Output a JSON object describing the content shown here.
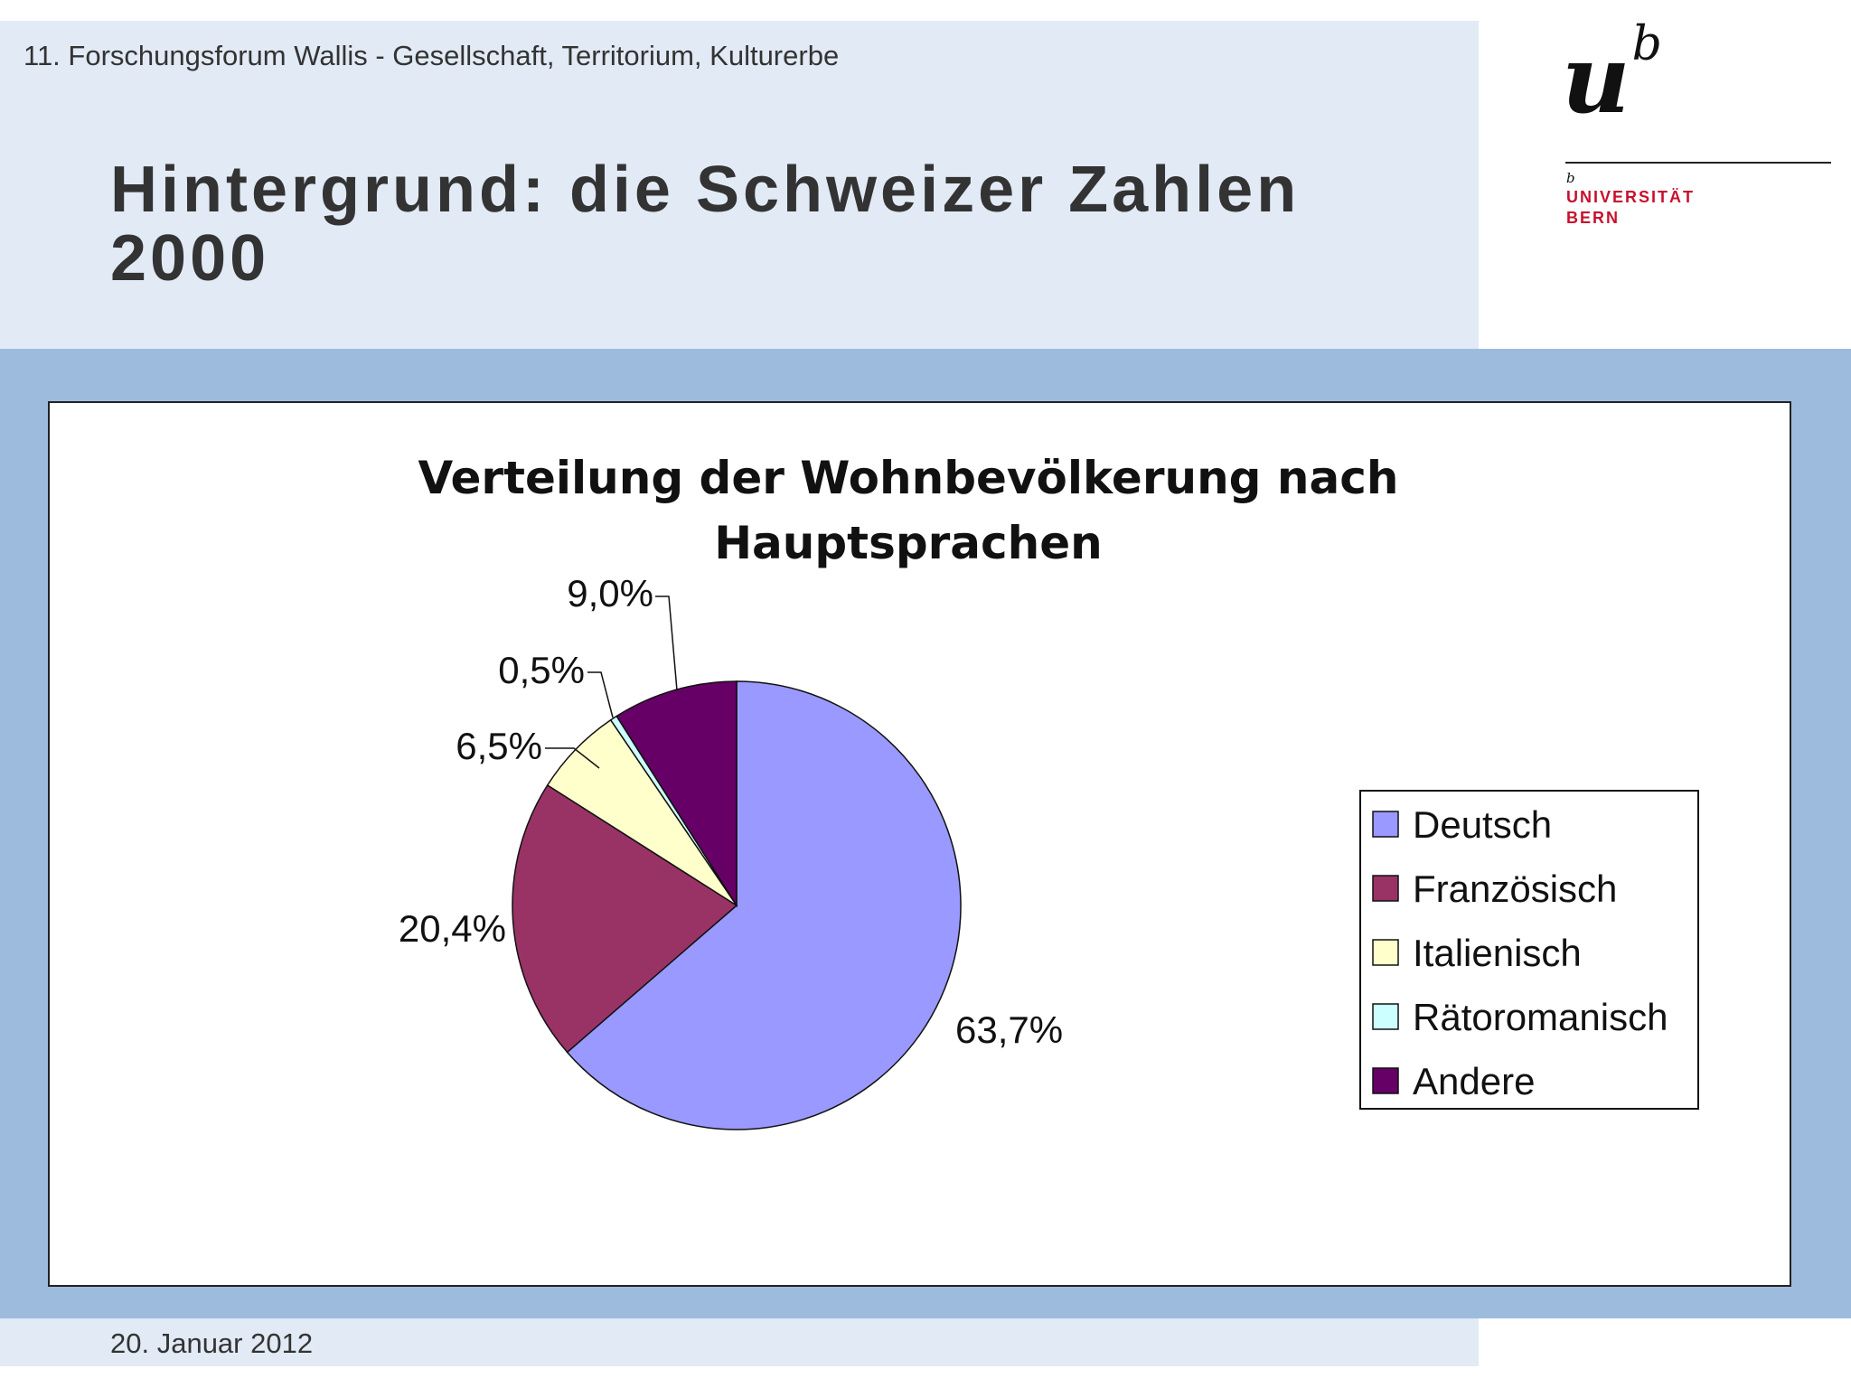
{
  "header": {
    "conference": "11. Forschungsforum Wallis - Gesellschaft, Territorium, Kulturerbe",
    "title_line1": "Hintergrund: die Schweizer Zahlen",
    "title_line2": "2000"
  },
  "logo": {
    "mark": "u",
    "superscript": "b",
    "small_b": "b",
    "university": "UNIVERSITÄT",
    "city": "BERN",
    "brand_color": "#c8102e"
  },
  "chart_data": {
    "type": "pie",
    "title_line1": "Verteilung der Wohnbevölkerung nach",
    "title_line2": "Hauptsprachen",
    "categories": [
      "Deutsch",
      "Französisch",
      "Italienisch",
      "Rätoromanisch",
      "Andere"
    ],
    "values": [
      63.7,
      20.4,
      6.5,
      0.5,
      9.0
    ],
    "data_labels": [
      "63,7%",
      "20,4%",
      "6,5%",
      "0,5%",
      "9,0%"
    ],
    "colors": [
      "#9999ff",
      "#993366",
      "#ffffcc",
      "#ccffff",
      "#660066"
    ],
    "start_angle": "12 o'clock, clockwise",
    "legend": "right"
  },
  "footer": {
    "date": "20. Januar 2012"
  }
}
